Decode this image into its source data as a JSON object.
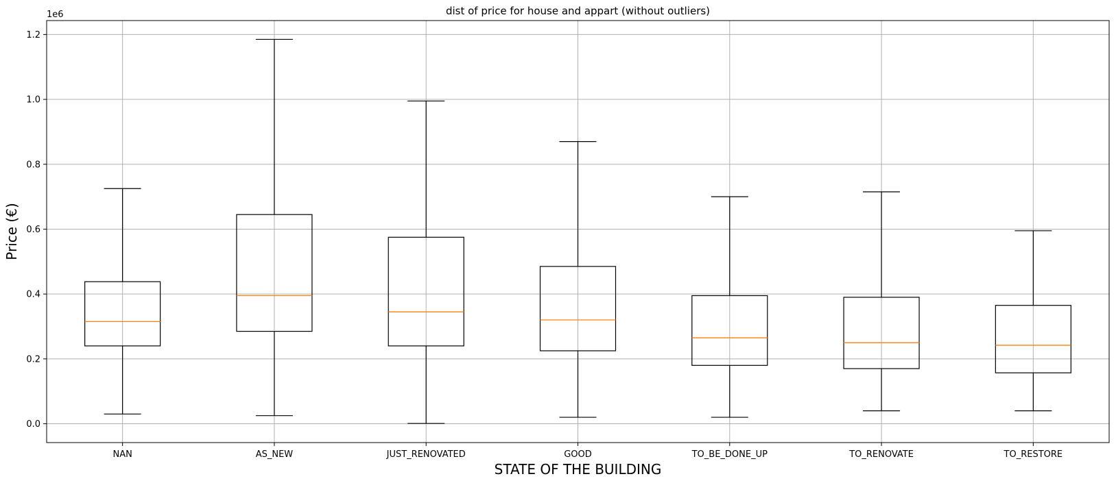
{
  "chart_data": {
    "type": "box",
    "title": "dist of price for house and appart (without outliers)",
    "xlabel": "STATE OF THE BUILDING",
    "ylabel": "Price (€)",
    "y_scale_label": "1e6",
    "ylim": [
      -58000,
      1243000
    ],
    "yticks": [
      0,
      200000,
      400000,
      600000,
      800000,
      1000000,
      1200000
    ],
    "ytick_labels": [
      "0.0",
      "0.2",
      "0.4",
      "0.6",
      "0.8",
      "1.0",
      "1.2"
    ],
    "grid": true,
    "categories": [
      "NAN",
      "AS_NEW",
      "JUST_RENOVATED",
      "GOOD",
      "TO_BE_DONE_UP",
      "TO_RENOVATE",
      "TO_RESTORE"
    ],
    "boxes": [
      {
        "label": "NAN",
        "whislo": 30000,
        "q1": 240000,
        "med": 315000,
        "q3": 438000,
        "whishi": 725000
      },
      {
        "label": "AS_NEW",
        "whislo": 25000,
        "q1": 285000,
        "med": 395000,
        "q3": 645000,
        "whishi": 1185000
      },
      {
        "label": "JUST_RENOVATED",
        "whislo": 1000,
        "q1": 240000,
        "med": 345000,
        "q3": 575000,
        "whishi": 995000
      },
      {
        "label": "GOOD",
        "whislo": 20000,
        "q1": 225000,
        "med": 320000,
        "q3": 485000,
        "whishi": 870000
      },
      {
        "label": "TO_BE_DONE_UP",
        "whislo": 20000,
        "q1": 180000,
        "med": 265000,
        "q3": 395000,
        "whishi": 700000
      },
      {
        "label": "TO_RENOVATE",
        "whislo": 40000,
        "q1": 170000,
        "med": 250000,
        "q3": 390000,
        "whishi": 715000
      },
      {
        "label": "TO_RESTORE",
        "whislo": 40000,
        "q1": 157000,
        "med": 242000,
        "q3": 365000,
        "whishi": 595000
      }
    ],
    "colors": {
      "box": "#000000",
      "median": "#ff7f0e",
      "grid": "#b0b0b0"
    }
  }
}
